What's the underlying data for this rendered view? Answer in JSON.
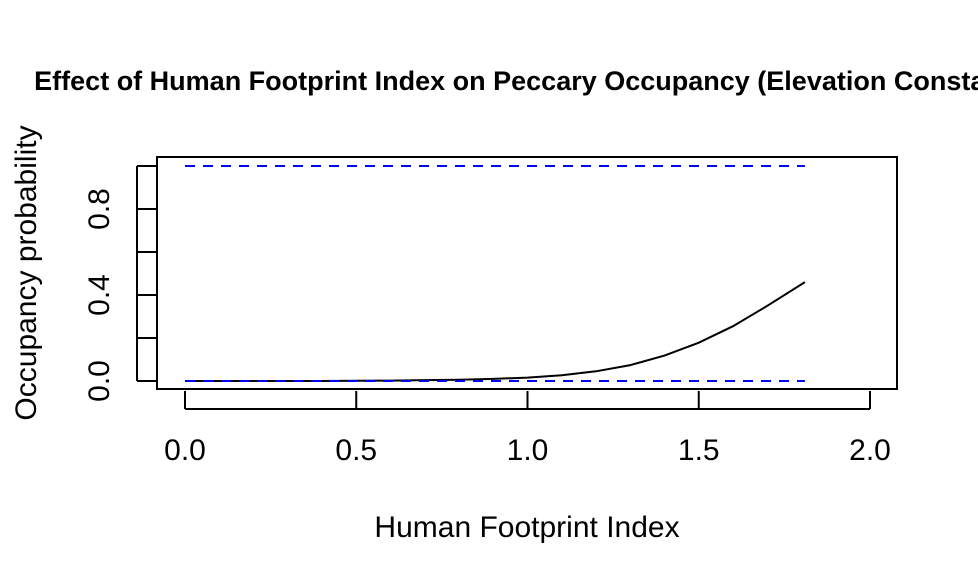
{
  "chart_data": {
    "type": "line",
    "title": "Effect of Human Footprint Index on Peccary Occupancy (Elevation Constant)",
    "xlabel": "Human Footprint Index",
    "ylabel": "Occupancy probability",
    "xlim": [
      0.0,
      2.0
    ],
    "ylim": [
      0.0,
      1.0
    ],
    "x_ticks": [
      0.0,
      0.5,
      1.0,
      1.5,
      2.0
    ],
    "x_tick_labels": [
      "0.0",
      "0.5",
      "1.0",
      "1.5",
      "2.0"
    ],
    "y_ticks": [
      0.0,
      0.2,
      0.4,
      0.6,
      0.8,
      1.0
    ],
    "y_tick_labels": [
      "0.0",
      "",
      "0.4",
      "",
      "0.8",
      ""
    ],
    "grid": false,
    "legend": "none",
    "series": [
      {
        "style": "solid",
        "color": "#000000",
        "x": [
          0.0,
          0.1,
          0.2,
          0.3,
          0.4,
          0.5,
          0.6,
          0.7,
          0.8,
          0.9,
          1.0,
          1.1,
          1.2,
          1.3,
          1.4,
          1.5,
          1.6,
          1.7,
          1.81
        ],
        "y": [
          0.0,
          0.0,
          0.0,
          0.0,
          0.0,
          0.001,
          0.002,
          0.004,
          0.006,
          0.01,
          0.016,
          0.027,
          0.045,
          0.074,
          0.118,
          0.178,
          0.255,
          0.35,
          0.46
        ]
      },
      {
        "style": "dashed",
        "color": "#0000ff",
        "x": [
          0.0,
          1.81
        ],
        "y": [
          1.0,
          1.0
        ]
      },
      {
        "style": "dashed",
        "color": "#0000ff",
        "x": [
          0.0,
          1.81
        ],
        "y": [
          0.0,
          0.0
        ]
      }
    ]
  }
}
